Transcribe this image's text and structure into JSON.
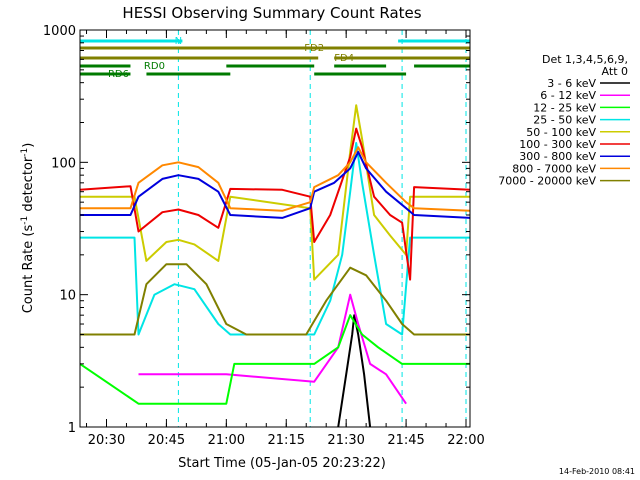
{
  "chart_data": {
    "type": "line",
    "title": "HESSI Observing Summary Count Rates",
    "xlabel": "Start Time (05-Jan-05 20:23:22)",
    "ylabel_main": "Count Rate (s",
    "ylabel_sup1": "-1",
    "ylabel_mid": " detector",
    "ylabel_sup2": "-1",
    "ylabel_end": ")",
    "footer_date": "14-Feb-2010 08:41",
    "y_scale": "log",
    "xlim": [
      "20:23:22",
      "22:01:00"
    ],
    "ylim": [
      1,
      1000
    ],
    "x_ticks": [
      "20:30",
      "20:45",
      "21:00",
      "21:15",
      "21:30",
      "21:45",
      "22:00"
    ],
    "y_ticks": [
      {
        "value": 1,
        "label": "1"
      },
      {
        "value": 10,
        "label": "10"
      },
      {
        "value": 100,
        "label": "100"
      },
      {
        "value": 1000,
        "label": "1000"
      }
    ],
    "legend": {
      "placement": "right",
      "header_line1": "Det 1,3,4,5,6,9,",
      "header_line2": "Att 0"
    },
    "flags": [
      {
        "label": "N",
        "color": "#00e5e5",
        "segments": [
          [
            "20:23:22",
            "20:49:00"
          ],
          [
            "21:43:00",
            "22:01:00"
          ]
        ],
        "level": 1
      },
      {
        "label": "FD2",
        "color": "#808000",
        "segments": [
          [
            "20:23:22",
            "22:01:00"
          ]
        ],
        "level": 2
      },
      {
        "label": "FD4",
        "color": "#808000",
        "segments": [
          [
            "20:23:22",
            "21:23:00"
          ],
          [
            "21:27:00",
            "22:01:00"
          ]
        ],
        "level": 3
      },
      {
        "label": "RD0",
        "color": "#007a00",
        "segments": [
          [
            "20:23:22",
            "20:36:00"
          ],
          [
            "21:00:00",
            "21:22:00"
          ],
          [
            "21:27:00",
            "21:40:00"
          ],
          [
            "21:47:00",
            "22:01:00"
          ]
        ],
        "level": 4
      },
      {
        "label": "RD6",
        "color": "#007a00",
        "segments": [
          [
            "20:23:22",
            "20:36:00"
          ],
          [
            "20:40:00",
            "21:01:00"
          ],
          [
            "21:22:00",
            "21:45:00"
          ]
        ],
        "level": 5
      }
    ],
    "saa_lines": [
      "20:23:22",
      "20:48:00",
      "21:21:00",
      "21:44:00",
      "22:00:00"
    ],
    "series": [
      {
        "name": "3 - 6 keV",
        "color": "#000000",
        "points": [
          [
            "21:28:00",
            1
          ],
          [
            "21:30:00",
            2.5
          ],
          [
            "21:31:30",
            5
          ],
          [
            "21:32:00",
            7
          ],
          [
            "21:33:00",
            5
          ],
          [
            "21:34:30",
            2.5
          ],
          [
            "21:36:00",
            1
          ]
        ]
      },
      {
        "name": "6 - 12 keV",
        "color": "#ff00ff",
        "points": [
          [
            "20:38:00",
            2.5
          ],
          [
            "21:00:00",
            2.5
          ],
          [
            "21:22:00",
            2.2
          ],
          [
            "21:28:00",
            4
          ],
          [
            "21:31:00",
            10
          ],
          [
            "21:33:00",
            6
          ],
          [
            "21:36:00",
            3
          ],
          [
            "21:40:00",
            2.5
          ],
          [
            "21:45:00",
            1.5
          ]
        ]
      },
      {
        "name": "12 - 25 keV",
        "color": "#00ff00",
        "points": [
          [
            "20:23:22",
            3
          ],
          [
            "20:38:00",
            1.5
          ],
          [
            "21:00:00",
            1.5
          ],
          [
            "21:02:00",
            3
          ],
          [
            "21:22:00",
            3
          ],
          [
            "21:28:00",
            4
          ],
          [
            "21:31:00",
            7
          ],
          [
            "21:34:00",
            5
          ],
          [
            "21:38:00",
            4
          ],
          [
            "21:44:00",
            3
          ],
          [
            "22:01:00",
            3
          ]
        ]
      },
      {
        "name": "25 - 50 keV",
        "color": "#00e5e5",
        "points": [
          [
            "20:23:22",
            27
          ],
          [
            "20:37:00",
            27
          ],
          [
            "20:38:00",
            5
          ],
          [
            "20:42:00",
            10
          ],
          [
            "20:47:00",
            12
          ],
          [
            "20:52:00",
            11
          ],
          [
            "20:58:00",
            6
          ],
          [
            "21:01:00",
            5
          ],
          [
            "21:22:00",
            5
          ],
          [
            "21:26:00",
            9
          ],
          [
            "21:29:00",
            20
          ],
          [
            "21:31:00",
            60
          ],
          [
            "21:32:30",
            140
          ],
          [
            "21:34:00",
            70
          ],
          [
            "21:37:00",
            20
          ],
          [
            "21:40:00",
            6
          ],
          [
            "21:44:00",
            5
          ],
          [
            "21:46:00",
            27
          ],
          [
            "22:01:00",
            27
          ]
        ]
      },
      {
        "name": "50 - 100 keV",
        "color": "#cccc00",
        "points": [
          [
            "20:23:22",
            55
          ],
          [
            "20:37:00",
            55
          ],
          [
            "20:40:00",
            18
          ],
          [
            "20:45:00",
            25
          ],
          [
            "20:48:00",
            26
          ],
          [
            "20:52:00",
            24
          ],
          [
            "20:58:00",
            18
          ],
          [
            "21:01:00",
            55
          ],
          [
            "21:21:00",
            45
          ],
          [
            "21:22:00",
            13
          ],
          [
            "21:28:00",
            20
          ],
          [
            "21:31:00",
            120
          ],
          [
            "21:32:30",
            270
          ],
          [
            "21:34:00",
            150
          ],
          [
            "21:37:00",
            40
          ],
          [
            "21:41:00",
            28
          ],
          [
            "21:45:00",
            20
          ],
          [
            "21:46:00",
            55
          ],
          [
            "22:01:00",
            55
          ]
        ]
      },
      {
        "name": "100 - 300 keV",
        "color": "#ee0000",
        "points": [
          [
            "20:23:22",
            62
          ],
          [
            "20:36:00",
            66
          ],
          [
            "20:38:00",
            30
          ],
          [
            "20:44:00",
            42
          ],
          [
            "20:48:00",
            44
          ],
          [
            "20:53:00",
            40
          ],
          [
            "20:58:00",
            32
          ],
          [
            "21:01:00",
            63
          ],
          [
            "21:14:00",
            62
          ],
          [
            "21:21:00",
            55
          ],
          [
            "21:22:00",
            25
          ],
          [
            "21:26:00",
            40
          ],
          [
            "21:31:00",
            110
          ],
          [
            "21:32:30",
            180
          ],
          [
            "21:34:00",
            130
          ],
          [
            "21:37:00",
            55
          ],
          [
            "21:41:00",
            40
          ],
          [
            "21:44:00",
            35
          ],
          [
            "21:46:00",
            13
          ],
          [
            "21:47:00",
            65
          ],
          [
            "22:01:00",
            62
          ]
        ]
      },
      {
        "name": "300 - 800 keV",
        "color": "#0000dd",
        "points": [
          [
            "20:23:22",
            40
          ],
          [
            "20:36:00",
            40
          ],
          [
            "20:38:00",
            55
          ],
          [
            "20:44:00",
            75
          ],
          [
            "20:48:00",
            80
          ],
          [
            "20:53:00",
            75
          ],
          [
            "20:58:00",
            60
          ],
          [
            "21:01:00",
            40
          ],
          [
            "21:14:00",
            38
          ],
          [
            "21:21:00",
            45
          ],
          [
            "21:22:00",
            60
          ],
          [
            "21:27:00",
            70
          ],
          [
            "21:31:00",
            90
          ],
          [
            "21:33:00",
            120
          ],
          [
            "21:35:00",
            90
          ],
          [
            "21:40:00",
            60
          ],
          [
            "21:45:00",
            45
          ],
          [
            "21:47:00",
            40
          ],
          [
            "22:01:00",
            38
          ]
        ]
      },
      {
        "name": "800 - 7000 keV",
        "color": "#ff8800",
        "points": [
          [
            "20:23:22",
            45
          ],
          [
            "20:36:00",
            45
          ],
          [
            "20:38:00",
            70
          ],
          [
            "20:44:00",
            95
          ],
          [
            "20:48:00",
            100
          ],
          [
            "20:53:00",
            92
          ],
          [
            "20:58:00",
            70
          ],
          [
            "21:01:00",
            45
          ],
          [
            "21:14:00",
            43
          ],
          [
            "21:21:00",
            50
          ],
          [
            "21:22:00",
            65
          ],
          [
            "21:28:00",
            80
          ],
          [
            "21:31:00",
            100
          ],
          [
            "21:33:00",
            130
          ],
          [
            "21:35:00",
            100
          ],
          [
            "21:40:00",
            70
          ],
          [
            "21:45:00",
            50
          ],
          [
            "21:47:00",
            45
          ],
          [
            "22:01:00",
            43
          ]
        ]
      },
      {
        "name": "7000 - 20000 keV",
        "color": "#808000",
        "points": [
          [
            "20:23:22",
            5
          ],
          [
            "20:37:00",
            5
          ],
          [
            "20:40:00",
            12
          ],
          [
            "20:45:00",
            17
          ],
          [
            "20:50:00",
            17
          ],
          [
            "20:55:00",
            12
          ],
          [
            "21:00:00",
            6
          ],
          [
            "21:05:00",
            5
          ],
          [
            "21:20:00",
            5
          ],
          [
            "21:25:00",
            9
          ],
          [
            "21:31:00",
            16
          ],
          [
            "21:35:00",
            14
          ],
          [
            "21:40:00",
            9
          ],
          [
            "21:44:00",
            6
          ],
          [
            "21:47:00",
            5
          ],
          [
            "22:01:00",
            5
          ]
        ]
      }
    ]
  }
}
